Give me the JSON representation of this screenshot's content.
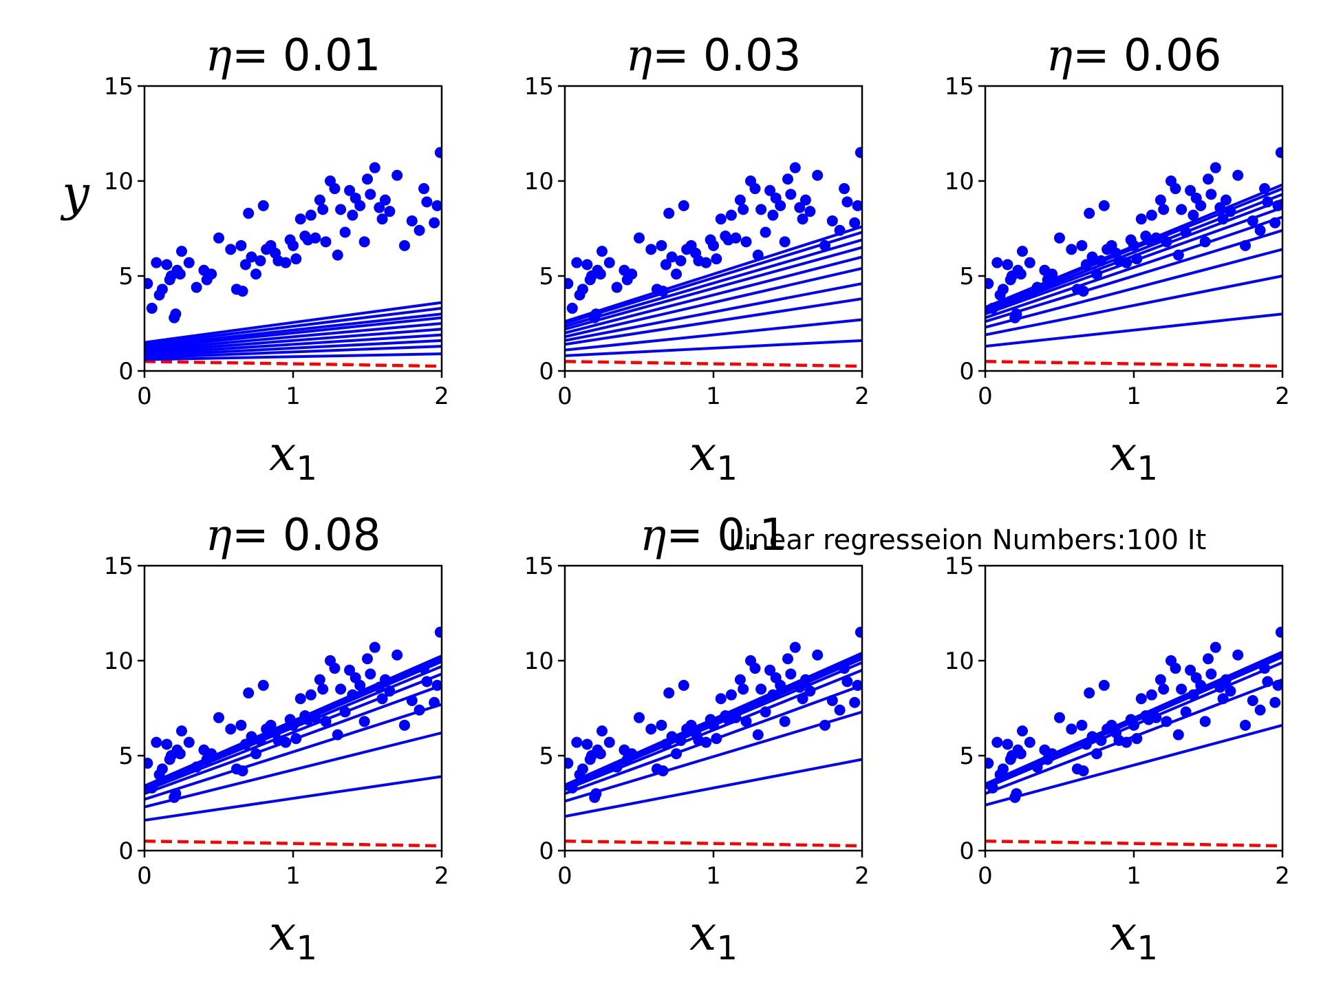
{
  "figure": {
    "suptitle": "Linear regresseion Numbers:100 It",
    "colors": {
      "fit_line": "#0000ff",
      "points": "#0000ff",
      "initial_line": "#ff0000"
    }
  },
  "chart_data": [
    {
      "type": "scatter",
      "title_symbol": "η",
      "title_value": "= 0.01",
      "xlabel": "x",
      "xlabel_sub": "1",
      "ylabel": "y",
      "xlim": [
        0,
        2
      ],
      "ylim": [
        0,
        15
      ],
      "xticks": [
        "0",
        "1",
        "2"
      ],
      "yticks": [
        "0",
        "5",
        "10",
        "15"
      ],
      "initial_line": {
        "x": [
          0,
          2
        ],
        "y": [
          0.5,
          0.25
        ]
      },
      "fit_lines": [
        {
          "x": [
            0,
            2
          ],
          "y": [
            0.6,
            0.9
          ]
        },
        {
          "x": [
            0,
            2
          ],
          "y": [
            0.7,
            1.3
          ]
        },
        {
          "x": [
            0,
            2
          ],
          "y": [
            0.8,
            1.6
          ]
        },
        {
          "x": [
            0,
            2
          ],
          "y": [
            0.9,
            1.9
          ]
        },
        {
          "x": [
            0,
            2
          ],
          "y": [
            1.0,
            2.2
          ]
        },
        {
          "x": [
            0,
            2
          ],
          "y": [
            1.1,
            2.5
          ]
        },
        {
          "x": [
            0,
            2
          ],
          "y": [
            1.2,
            2.8
          ]
        },
        {
          "x": [
            0,
            2
          ],
          "y": [
            1.3,
            3.0
          ]
        },
        {
          "x": [
            0,
            2
          ],
          "y": [
            1.4,
            3.3
          ]
        },
        {
          "x": [
            0,
            2
          ],
          "y": [
            1.5,
            3.6
          ]
        }
      ]
    },
    {
      "type": "scatter",
      "title_symbol": "η",
      "title_value": "= 0.03",
      "xlabel": "x",
      "xlabel_sub": "1",
      "ylabel": "",
      "xlim": [
        0,
        2
      ],
      "ylim": [
        0,
        15
      ],
      "xticks": [
        "0",
        "1",
        "2"
      ],
      "yticks": [
        "0",
        "5",
        "10",
        "15"
      ],
      "initial_line": {
        "x": [
          0,
          2
        ],
        "y": [
          0.5,
          0.25
        ]
      },
      "fit_lines": [
        {
          "x": [
            0,
            2
          ],
          "y": [
            0.8,
            1.6
          ]
        },
        {
          "x": [
            0,
            2
          ],
          "y": [
            1.1,
            2.7
          ]
        },
        {
          "x": [
            0,
            2
          ],
          "y": [
            1.4,
            3.8
          ]
        },
        {
          "x": [
            0,
            2
          ],
          "y": [
            1.6,
            4.6
          ]
        },
        {
          "x": [
            0,
            2
          ],
          "y": [
            1.8,
            5.4
          ]
        },
        {
          "x": [
            0,
            2
          ],
          "y": [
            2.0,
            6.0
          ]
        },
        {
          "x": [
            0,
            2
          ],
          "y": [
            2.2,
            6.5
          ]
        },
        {
          "x": [
            0,
            2
          ],
          "y": [
            2.35,
            6.9
          ]
        },
        {
          "x": [
            0,
            2
          ],
          "y": [
            2.5,
            7.3
          ]
        },
        {
          "x": [
            0,
            2
          ],
          "y": [
            2.6,
            7.6
          ]
        }
      ]
    },
    {
      "type": "scatter",
      "title_symbol": "η",
      "title_value": "= 0.06",
      "xlabel": "x",
      "xlabel_sub": "1",
      "ylabel": "",
      "xlim": [
        0,
        2
      ],
      "ylim": [
        0,
        15
      ],
      "xticks": [
        "0",
        "1",
        "2"
      ],
      "yticks": [
        "0",
        "5",
        "10",
        "15"
      ],
      "initial_line": {
        "x": [
          0,
          2
        ],
        "y": [
          0.5,
          0.25
        ]
      },
      "fit_lines": [
        {
          "x": [
            0,
            2
          ],
          "y": [
            1.3,
            3.0
          ]
        },
        {
          "x": [
            0,
            2
          ],
          "y": [
            1.9,
            5.0
          ]
        },
        {
          "x": [
            0,
            2
          ],
          "y": [
            2.3,
            6.4
          ]
        },
        {
          "x": [
            0,
            2
          ],
          "y": [
            2.6,
            7.4
          ]
        },
        {
          "x": [
            0,
            2
          ],
          "y": [
            2.8,
            8.1
          ]
        },
        {
          "x": [
            0,
            2
          ],
          "y": [
            3.0,
            8.6
          ]
        },
        {
          "x": [
            0,
            2
          ],
          "y": [
            3.1,
            9.0
          ]
        },
        {
          "x": [
            0,
            2
          ],
          "y": [
            3.2,
            9.3
          ]
        },
        {
          "x": [
            0,
            2
          ],
          "y": [
            3.3,
            9.6
          ]
        },
        {
          "x": [
            0,
            2
          ],
          "y": [
            3.35,
            9.8
          ]
        }
      ]
    },
    {
      "type": "scatter",
      "title_symbol": "η",
      "title_value": "= 0.08",
      "xlabel": "x",
      "xlabel_sub": "1",
      "ylabel": "",
      "xlim": [
        0,
        2
      ],
      "ylim": [
        0,
        15
      ],
      "xticks": [
        "0",
        "1",
        "2"
      ],
      "yticks": [
        "0",
        "5",
        "10",
        "15"
      ],
      "initial_line": {
        "x": [
          0,
          2
        ],
        "y": [
          0.5,
          0.25
        ]
      },
      "fit_lines": [
        {
          "x": [
            0,
            2
          ],
          "y": [
            1.6,
            3.9
          ]
        },
        {
          "x": [
            0,
            2
          ],
          "y": [
            2.3,
            6.2
          ]
        },
        {
          "x": [
            0,
            2
          ],
          "y": [
            2.7,
            7.7
          ]
        },
        {
          "x": [
            0,
            2
          ],
          "y": [
            3.0,
            8.7
          ]
        },
        {
          "x": [
            0,
            2
          ],
          "y": [
            3.15,
            9.3
          ]
        },
        {
          "x": [
            0,
            2
          ],
          "y": [
            3.25,
            9.7
          ]
        },
        {
          "x": [
            0,
            2
          ],
          "y": [
            3.3,
            9.95
          ]
        },
        {
          "x": [
            0,
            2
          ],
          "y": [
            3.35,
            10.1
          ]
        },
        {
          "x": [
            0,
            2
          ],
          "y": [
            3.4,
            10.2
          ]
        },
        {
          "x": [
            0,
            2
          ],
          "y": [
            3.4,
            10.25
          ]
        }
      ]
    },
    {
      "type": "scatter",
      "title_symbol": "η",
      "title_value": "= 0.1",
      "xlabel": "x",
      "xlabel_sub": "1",
      "ylabel": "",
      "xlim": [
        0,
        2
      ],
      "ylim": [
        0,
        15
      ],
      "xticks": [
        "0",
        "1",
        "2"
      ],
      "yticks": [
        "0",
        "5",
        "10",
        "15"
      ],
      "initial_line": {
        "x": [
          0,
          2
        ],
        "y": [
          0.5,
          0.25
        ]
      },
      "fit_lines": [
        {
          "x": [
            0,
            2
          ],
          "y": [
            1.8,
            4.8
          ]
        },
        {
          "x": [
            0,
            2
          ],
          "y": [
            2.6,
            7.3
          ]
        },
        {
          "x": [
            0,
            2
          ],
          "y": [
            3.0,
            8.7
          ]
        },
        {
          "x": [
            0,
            2
          ],
          "y": [
            3.2,
            9.5
          ]
        },
        {
          "x": [
            0,
            2
          ],
          "y": [
            3.3,
            9.9
          ]
        },
        {
          "x": [
            0,
            2
          ],
          "y": [
            3.35,
            10.1
          ]
        },
        {
          "x": [
            0,
            2
          ],
          "y": [
            3.4,
            10.25
          ]
        },
        {
          "x": [
            0,
            2
          ],
          "y": [
            3.4,
            10.3
          ]
        },
        {
          "x": [
            0,
            2
          ],
          "y": [
            3.45,
            10.35
          ]
        },
        {
          "x": [
            0,
            2
          ],
          "y": [
            3.45,
            10.4
          ]
        }
      ]
    },
    {
      "type": "scatter",
      "title_symbol": "",
      "title_value": "",
      "xlabel": "x",
      "xlabel_sub": "1",
      "ylabel": "",
      "xlim": [
        0,
        2
      ],
      "ylim": [
        0,
        15
      ],
      "xticks": [
        "0",
        "1",
        "2"
      ],
      "yticks": [
        "0",
        "5",
        "10",
        "15"
      ],
      "initial_line": {
        "x": [
          0,
          2
        ],
        "y": [
          0.5,
          0.25
        ]
      },
      "fit_lines": [
        {
          "x": [
            0,
            2
          ],
          "y": [
            2.4,
            6.6
          ]
        },
        {
          "x": [
            0,
            2
          ],
          "y": [
            3.0,
            9.0
          ]
        },
        {
          "x": [
            0,
            2
          ],
          "y": [
            3.3,
            9.9
          ]
        },
        {
          "x": [
            0,
            2
          ],
          "y": [
            3.4,
            10.2
          ]
        },
        {
          "x": [
            0,
            2
          ],
          "y": [
            3.45,
            10.35
          ]
        },
        {
          "x": [
            0,
            2
          ],
          "y": [
            3.5,
            10.4
          ]
        },
        {
          "x": [
            0,
            2
          ],
          "y": [
            3.5,
            10.42
          ]
        },
        {
          "x": [
            0,
            2
          ],
          "y": [
            3.5,
            10.44
          ]
        },
        {
          "x": [
            0,
            2
          ],
          "y": [
            3.5,
            10.45
          ]
        },
        {
          "x": [
            0,
            2
          ],
          "y": [
            3.5,
            10.46
          ]
        }
      ]
    }
  ],
  "scatter_points": {
    "x": [
      0.02,
      0.05,
      0.08,
      0.1,
      0.12,
      0.15,
      0.17,
      0.18,
      0.2,
      0.21,
      0.22,
      0.24,
      0.25,
      0.3,
      0.35,
      0.4,
      0.42,
      0.45,
      0.5,
      0.58,
      0.62,
      0.65,
      0.66,
      0.68,
      0.7,
      0.72,
      0.75,
      0.78,
      0.8,
      0.82,
      0.85,
      0.88,
      0.9,
      0.95,
      0.98,
      1.0,
      1.02,
      1.05,
      1.08,
      1.1,
      1.12,
      1.15,
      1.18,
      1.2,
      1.22,
      1.25,
      1.28,
      1.3,
      1.32,
      1.35,
      1.38,
      1.4,
      1.42,
      1.45,
      1.48,
      1.5,
      1.52,
      1.55,
      1.58,
      1.6,
      1.62,
      1.65,
      1.7,
      1.75,
      1.8,
      1.85,
      1.88,
      1.9,
      1.95,
      1.97,
      1.99
    ],
    "y": [
      4.6,
      3.3,
      5.7,
      4.0,
      4.3,
      5.6,
      4.8,
      5.0,
      2.8,
      3.0,
      5.3,
      5.1,
      6.3,
      5.7,
      4.4,
      5.3,
      4.8,
      5.1,
      7.0,
      6.4,
      4.3,
      6.6,
      4.2,
      5.6,
      8.3,
      6.0,
      5.1,
      5.8,
      8.7,
      6.4,
      6.6,
      6.2,
      5.8,
      5.7,
      6.9,
      6.6,
      5.9,
      8.0,
      7.1,
      6.9,
      8.2,
      7.0,
      9.0,
      8.5,
      6.8,
      10.0,
      9.6,
      6.1,
      8.5,
      7.3,
      9.5,
      8.2,
      9.1,
      8.7,
      6.8,
      10.1,
      9.3,
      10.7,
      8.6,
      8.0,
      9.0,
      8.4,
      10.3,
      6.6,
      7.9,
      7.4,
      9.6,
      8.9,
      7.8,
      8.7,
      11.5
    ]
  }
}
